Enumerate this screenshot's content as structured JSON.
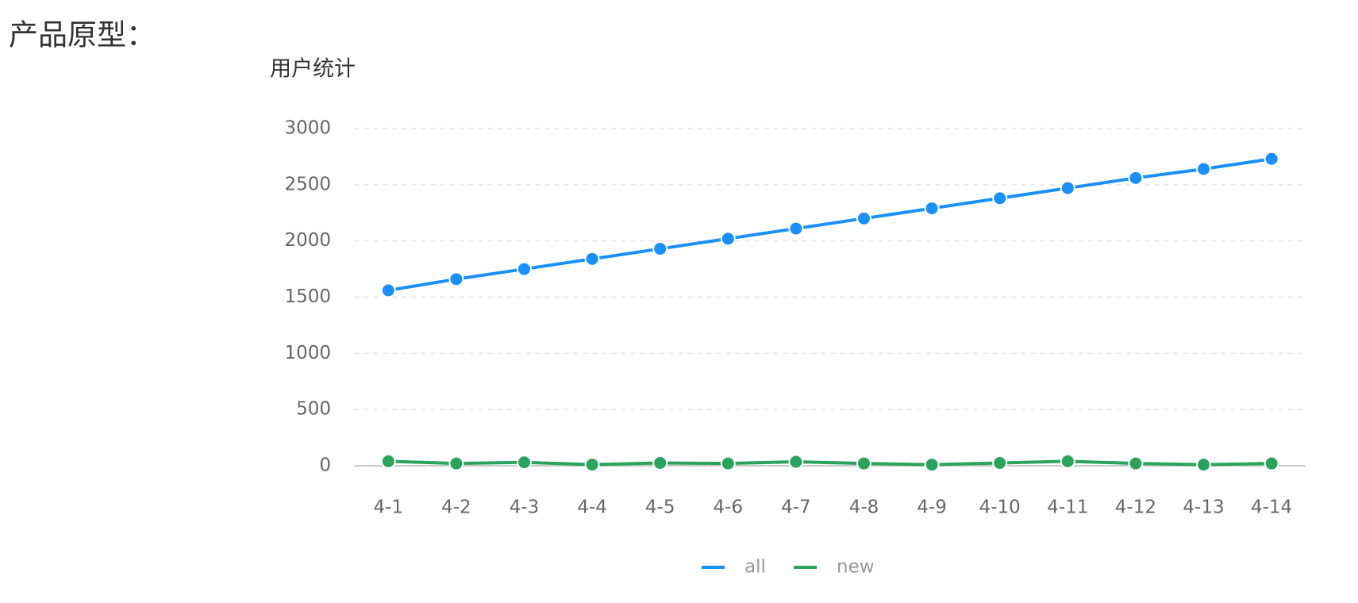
{
  "heading": "产品原型：",
  "chart_data": {
    "type": "line",
    "title": "用户统计",
    "categories": [
      "4-1",
      "4-2",
      "4-3",
      "4-4",
      "4-5",
      "4-6",
      "4-7",
      "4-8",
      "4-9",
      "4-10",
      "4-11",
      "4-12",
      "4-13",
      "4-14"
    ],
    "series": [
      {
        "name": "all",
        "color": "#1890ff",
        "values": [
          1560,
          1660,
          1750,
          1840,
          1930,
          2020,
          2110,
          2200,
          2290,
          2380,
          2470,
          2560,
          2640,
          2730
        ]
      },
      {
        "name": "new",
        "color": "#2aa35d",
        "values": [
          40,
          20,
          30,
          10,
          25,
          20,
          35,
          20,
          10,
          25,
          40,
          20,
          10,
          20
        ]
      }
    ],
    "ylim": [
      0,
      3000
    ],
    "yticks": [
      0,
      500,
      1000,
      1500,
      2000,
      2500,
      3000
    ],
    "grid": true,
    "legend": "bottom"
  }
}
